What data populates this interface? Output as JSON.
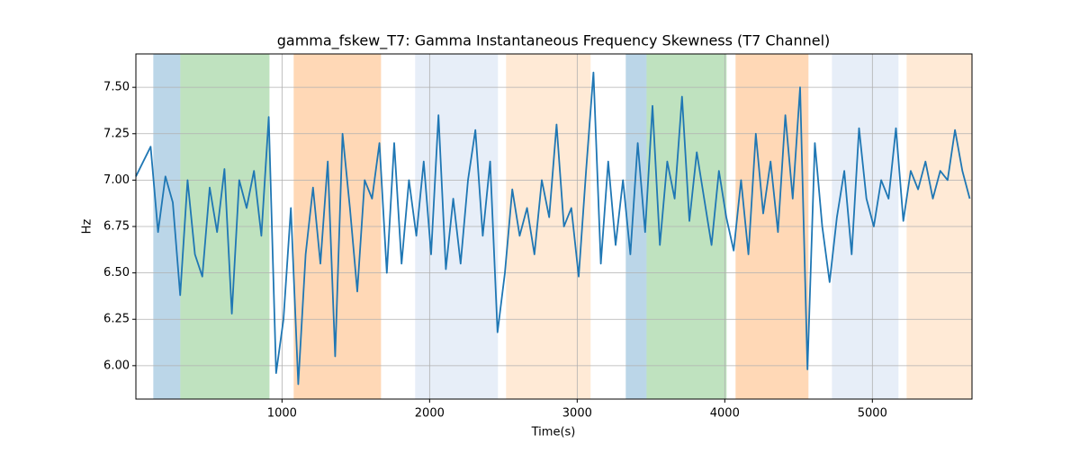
{
  "chart_data": {
    "type": "line",
    "title": "gamma_fskew_T7: Gamma Instantaneous Frequency Skewness (T7 Channel)",
    "x_label": "Time(s)",
    "y_label": "Hz",
    "xlim": [
      10,
      5675
    ],
    "ylim": [
      5.82,
      7.68
    ],
    "xticks": [
      1000,
      2000,
      3000,
      4000,
      5000
    ],
    "yticks": [
      {
        "value": 6,
        "label": "6.00"
      },
      {
        "value": 6.25,
        "label": "6.25"
      },
      {
        "value": 6.5,
        "label": "6.50"
      },
      {
        "value": 6.75,
        "label": "6.75"
      },
      {
        "value": 7,
        "label": "7.00"
      },
      {
        "value": 7.25,
        "label": "7.25"
      },
      {
        "value": 7.5,
        "label": "7.50"
      }
    ],
    "grid": true,
    "bands": [
      {
        "start": 128,
        "end": 311,
        "color": "#1f77b4",
        "opacity": 0.3
      },
      {
        "start": 311,
        "end": 915,
        "color": "#2ca02c",
        "opacity": 0.3
      },
      {
        "start": 1079,
        "end": 1671,
        "color": "#ff7f0e",
        "opacity": 0.3
      },
      {
        "start": 1902,
        "end": 2463,
        "color": "#aec7e8",
        "opacity": 0.3
      },
      {
        "start": 2518,
        "end": 3091,
        "color": "#ffbb78",
        "opacity": 0.3
      },
      {
        "start": 3329,
        "end": 3470,
        "color": "#1f77b4",
        "opacity": 0.3
      },
      {
        "start": 3470,
        "end": 4012,
        "color": "#2ca02c",
        "opacity": 0.3
      },
      {
        "start": 4073,
        "end": 4567,
        "color": "#ff7f0e",
        "opacity": 0.3
      },
      {
        "start": 4726,
        "end": 5177,
        "color": "#aec7e8",
        "opacity": 0.3
      },
      {
        "start": 5232,
        "end": 5677,
        "color": "#ffbb78",
        "opacity": 0.3
      }
    ],
    "color": "#1f77b4",
    "x": [
      10,
      60,
      110,
      160,
      210,
      260,
      310,
      360,
      410,
      460,
      510,
      560,
      610,
      660,
      710,
      760,
      810,
      860,
      910,
      960,
      1010,
      1060,
      1110,
      1160,
      1210,
      1260,
      1310,
      1360,
      1410,
      1460,
      1510,
      1560,
      1610,
      1660,
      1710,
      1760,
      1810,
      1860,
      1910,
      1960,
      2010,
      2060,
      2110,
      2160,
      2210,
      2260,
      2310,
      2360,
      2410,
      2460,
      2510,
      2560,
      2610,
      2660,
      2710,
      2760,
      2810,
      2860,
      2910,
      2960,
      3010,
      3060,
      3110,
      3160,
      3210,
      3260,
      3310,
      3360,
      3410,
      3460,
      3510,
      3560,
      3610,
      3660,
      3710,
      3760,
      3810,
      3860,
      3910,
      3960,
      4010,
      4060,
      4110,
      4160,
      4210,
      4260,
      4310,
      4360,
      4410,
      4460,
      4510,
      4560,
      4610,
      4660,
      4710,
      4760,
      4810,
      4860,
      4910,
      4960,
      5010,
      5060,
      5110,
      5160,
      5210,
      5260,
      5310,
      5360,
      5410,
      5460,
      5510,
      5560,
      5610,
      5660
    ],
    "values": [
      7.02,
      7.1,
      7.18,
      6.72,
      7.02,
      6.88,
      6.38,
      7.0,
      6.6,
      6.48,
      6.96,
      6.72,
      7.06,
      6.28,
      7.0,
      6.85,
      7.05,
      6.7,
      7.34,
      5.96,
      6.25,
      6.85,
      5.9,
      6.6,
      6.96,
      6.55,
      7.1,
      6.05,
      7.25,
      6.85,
      6.4,
      7.0,
      6.9,
      7.2,
      6.5,
      7.2,
      6.55,
      7.0,
      6.7,
      7.1,
      6.6,
      7.35,
      6.52,
      6.9,
      6.55,
      7.0,
      7.27,
      6.7,
      7.1,
      6.18,
      6.5,
      6.95,
      6.7,
      6.85,
      6.6,
      7.0,
      6.8,
      7.3,
      6.75,
      6.85,
      6.48,
      7.05,
      7.58,
      6.55,
      7.1,
      6.65,
      7.0,
      6.6,
      7.2,
      6.72,
      7.4,
      6.65,
      7.1,
      6.9,
      7.45,
      6.78,
      7.15,
      6.9,
      6.65,
      7.05,
      6.8,
      6.62,
      7.0,
      6.6,
      7.25,
      6.82,
      7.1,
      6.72,
      7.35,
      6.9,
      7.5,
      5.98,
      7.2,
      6.75,
      6.45,
      6.8,
      7.05,
      6.6,
      7.28,
      6.9,
      6.75,
      7.0,
      6.9,
      7.28,
      6.78,
      7.05,
      6.95,
      7.1,
      6.9,
      7.05,
      7.0,
      7.27,
      7.05,
      6.9
    ]
  }
}
